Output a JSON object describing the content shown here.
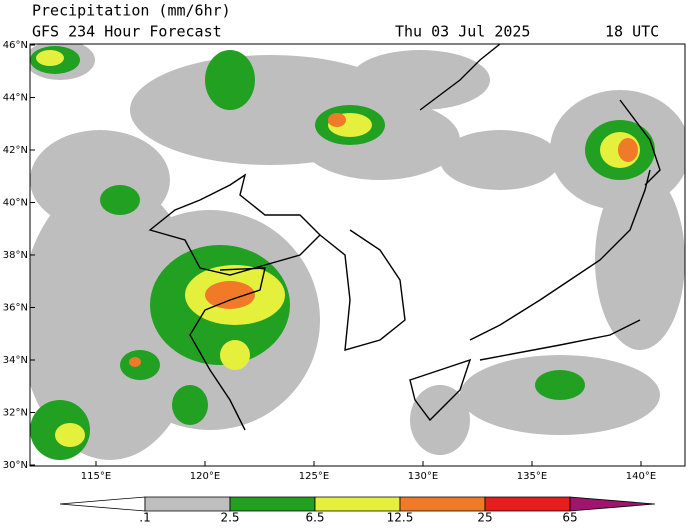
{
  "header": {
    "title": "Precipitation (mm/6hr)",
    "subtitle": "GFS 234 Hour Forecast",
    "date": "Thu 03 Jul 2025",
    "time": "18 UTC"
  },
  "map": {
    "lat_labels": [
      "46°N",
      "44°N",
      "42°N",
      "40°N",
      "38°N",
      "36°N",
      "34°N",
      "32°N",
      "30°N"
    ],
    "lon_labels": [
      "115°E",
      "120°E",
      "125°E",
      "130°E",
      "135°E",
      "140°E"
    ]
  },
  "colorbar": {
    "labels": [
      ".1",
      "2.5",
      "6.5",
      "12.5",
      "25",
      "65"
    ],
    "colors": [
      "#ffffff",
      "#bebebe",
      "#22a022",
      "#e4f03c",
      "#f07a28",
      "#e61e1e",
      "#a0146e"
    ]
  }
}
